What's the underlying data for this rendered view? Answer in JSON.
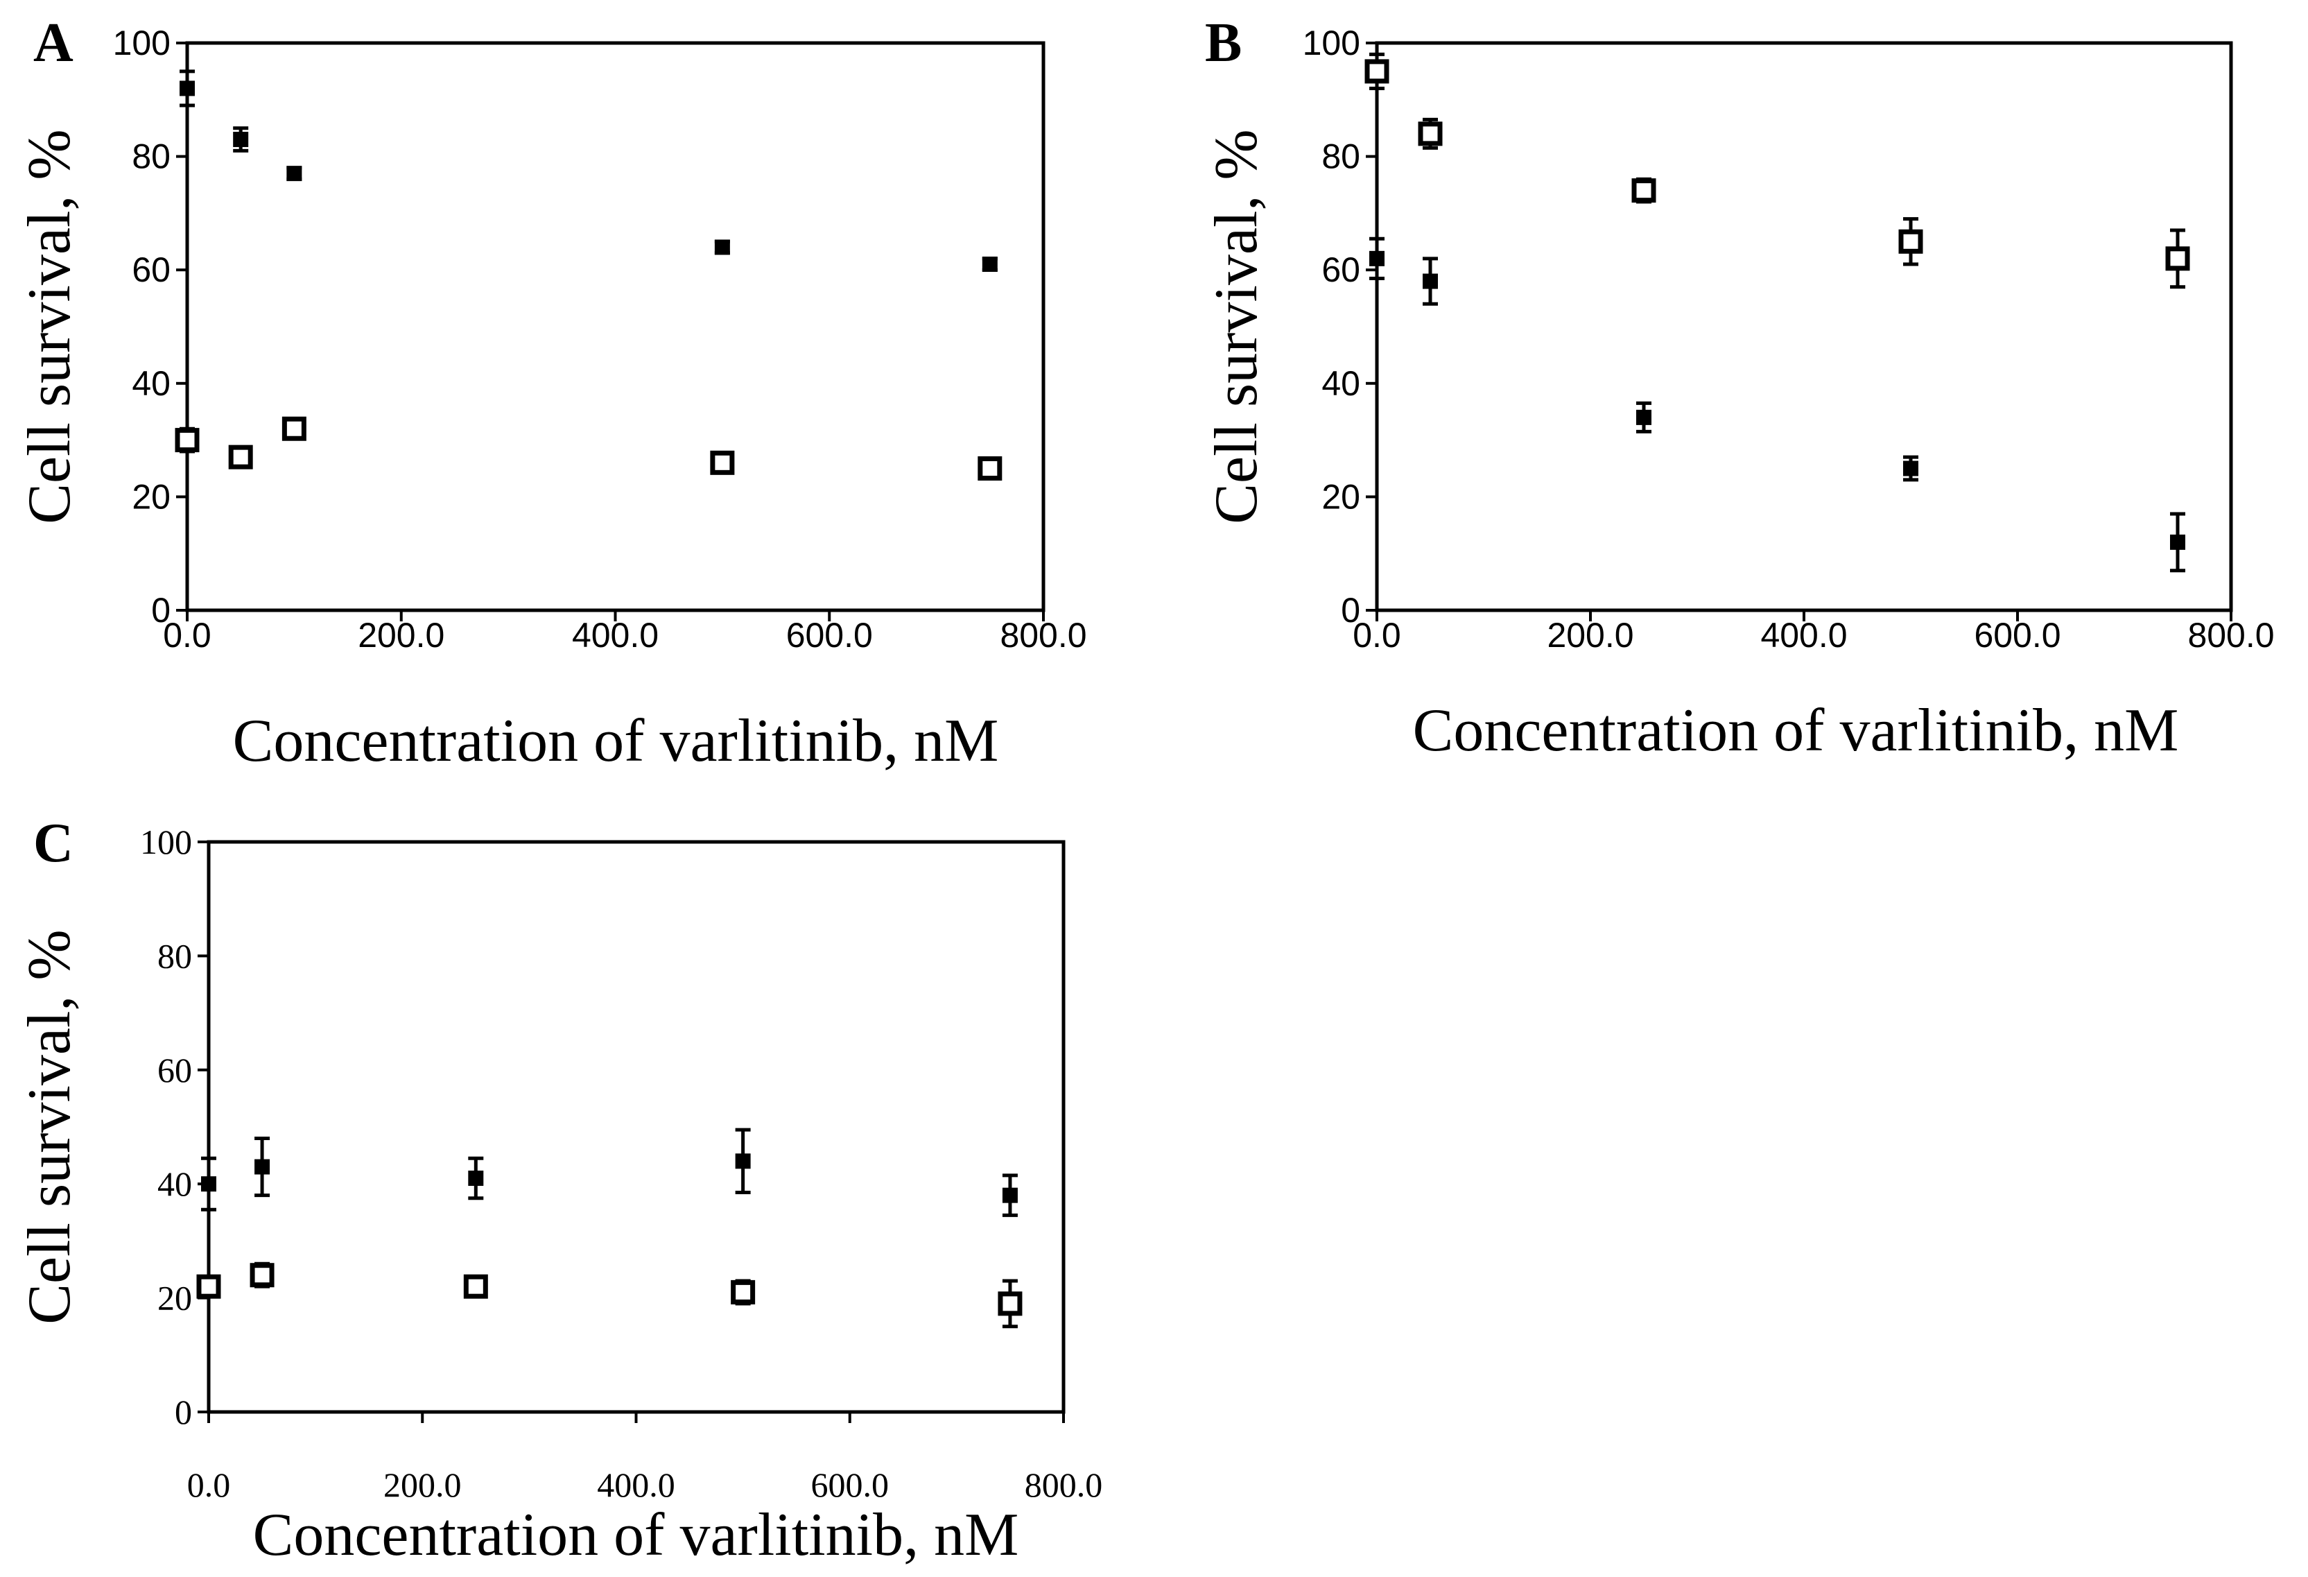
{
  "chart_data": [
    {
      "panel": "A",
      "type": "scatter",
      "xlabel": "Concentration of varlitinib, nM",
      "ylabel": "Cell survival, %",
      "xlim": [
        0,
        800
      ],
      "ylim": [
        0,
        100
      ],
      "x_ticks": [
        "0.0",
        "200.0",
        "400.0",
        "600.0",
        "800.0"
      ],
      "y_ticks": [
        "0",
        "20",
        "40",
        "60",
        "80",
        "100"
      ],
      "series": [
        {
          "name": "filled",
          "marker": "filled-square",
          "x": [
            0,
            50,
            100,
            500,
            750
          ],
          "y": [
            92,
            83,
            77,
            64,
            61
          ],
          "err": [
            3,
            2,
            1,
            1,
            1
          ]
        },
        {
          "name": "open",
          "marker": "open-square",
          "x": [
            0,
            50,
            100,
            500,
            750
          ],
          "y": [
            30,
            27,
            32,
            26,
            25
          ],
          "err": [
            2,
            1,
            1.5,
            1.5,
            1
          ]
        }
      ]
    },
    {
      "panel": "B",
      "type": "scatter",
      "xlabel": "Concentration of varlitinib, nM",
      "ylabel": "Cell survival, %",
      "xlim": [
        0,
        800
      ],
      "ylim": [
        0,
        100
      ],
      "x_ticks": [
        "0.0",
        "200.0",
        "400.0",
        "600.0",
        "800.0"
      ],
      "y_ticks": [
        "0",
        "20",
        "40",
        "60",
        "80",
        "100"
      ],
      "series": [
        {
          "name": "filled",
          "marker": "filled-square",
          "x": [
            0,
            50,
            250,
            500,
            750
          ],
          "y": [
            62,
            58,
            34,
            25,
            12
          ],
          "err": [
            3.5,
            4,
            2.5,
            2,
            5
          ]
        },
        {
          "name": "open",
          "marker": "open-square",
          "x": [
            0,
            50,
            250,
            500,
            750
          ],
          "y": [
            95,
            84,
            74,
            65,
            62
          ],
          "err": [
            3,
            2.5,
            2,
            4,
            5
          ]
        }
      ]
    },
    {
      "panel": "C",
      "type": "scatter",
      "xlabel": "Concentration of varlitinib, nM",
      "ylabel": "Cell survival, %",
      "xlim": [
        0,
        800
      ],
      "ylim": [
        0,
        100
      ],
      "x_ticks": [
        "0.0",
        "200.0",
        "400.0",
        "600.0",
        "800.0"
      ],
      "y_ticks": [
        "0",
        "20",
        "40",
        "60",
        "80",
        "100"
      ],
      "series": [
        {
          "name": "filled",
          "marker": "filled-square",
          "x": [
            0,
            50,
            250,
            500,
            750
          ],
          "y": [
            40,
            43,
            41,
            44,
            38
          ],
          "err": [
            4.5,
            5,
            3.5,
            5.5,
            3.5
          ]
        },
        {
          "name": "open",
          "marker": "open-square",
          "x": [
            0,
            50,
            250,
            500,
            750
          ],
          "y": [
            22,
            24,
            22,
            21,
            19
          ],
          "err": [
            1.5,
            2,
            1,
            2,
            4
          ]
        }
      ]
    }
  ]
}
